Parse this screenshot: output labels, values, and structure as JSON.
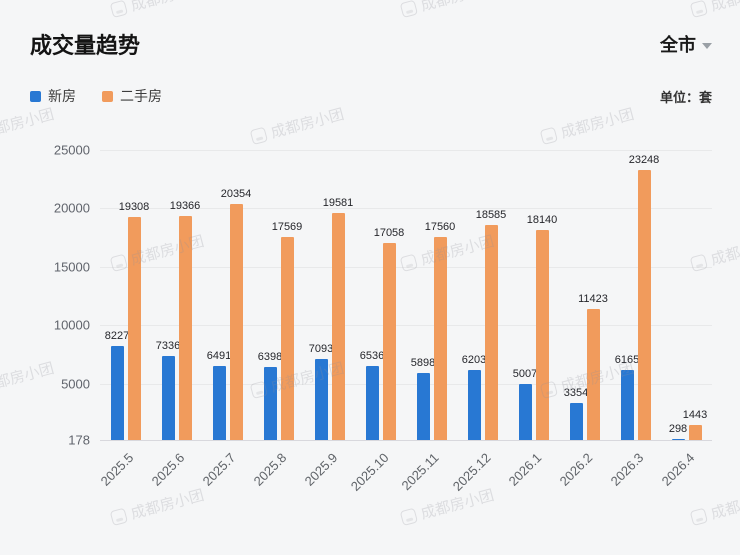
{
  "header": {
    "title": "成交量趋势",
    "region": "全市"
  },
  "legend": {
    "items": [
      {
        "label": "新房"
      },
      {
        "label": "二手房"
      }
    ],
    "unit_label": "单位：套"
  },
  "watermark": {
    "text": "成都房小团"
  },
  "chart_data": {
    "type": "bar",
    "title": "成交量趋势",
    "unit": "套",
    "categories": [
      "2025.5",
      "2025.6",
      "2025.7",
      "2025.8",
      "2025.9",
      "2025.10",
      "2025.11",
      "2025.12",
      "2026.1",
      "2026.2",
      "2026.3",
      "2026.4"
    ],
    "series": [
      {
        "name": "新房",
        "color": "#2878d3",
        "values": [
          8227,
          7336,
          6491,
          6398,
          7093,
          6536,
          5898,
          6203,
          5007,
          3354,
          6165,
          298
        ]
      },
      {
        "name": "二手房",
        "color": "#f19b5c",
        "values": [
          19308,
          19366,
          20354,
          17569,
          19581,
          17058,
          17560,
          18585,
          18140,
          11423,
          23248,
          1443
        ]
      }
    ],
    "ymin": 178,
    "ymax": 25000,
    "yticks": [
      25000,
      20000,
      15000,
      10000,
      5000,
      178
    ],
    "grid": true,
    "legend_position": "top-left"
  }
}
